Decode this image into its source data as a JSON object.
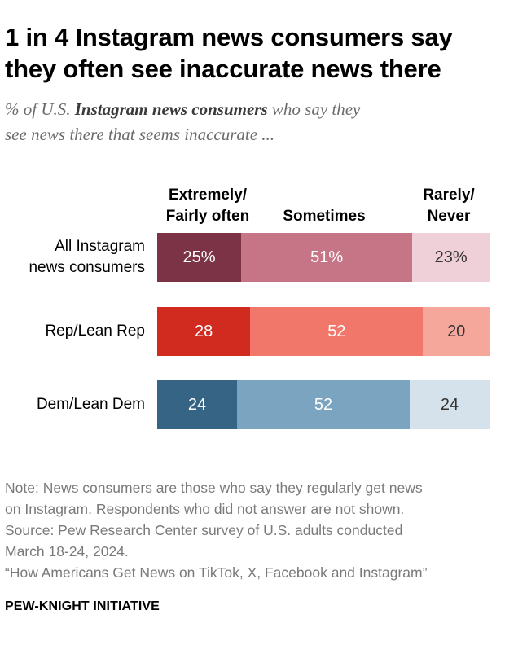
{
  "title_line1": "1 in 4 Instagram news consumers say",
  "title_line2": "they often see inaccurate news there",
  "subtitle": {
    "prefix": "% of U.S. ",
    "emphasis": "Instagram news consumers",
    "suffix_line1": " who say they",
    "line2": "see news there that seems inaccurate ..."
  },
  "chart_data": {
    "type": "bar",
    "orientation": "horizontal",
    "stacked": true,
    "scale_max": 100,
    "columns": [
      {
        "key": "often",
        "label_line1": "Extremely/",
        "label_line2": "Fairly often"
      },
      {
        "key": "sometimes",
        "label_line1": "",
        "label_line2": "Sometimes"
      },
      {
        "key": "rarely",
        "label_line1": "Rarely/",
        "label_line2": "Never"
      }
    ],
    "rows": [
      {
        "label_line1": "All Instagram",
        "label_line2": "news consumers",
        "values": [
          25,
          51,
          23
        ],
        "display": [
          "25%",
          "51%",
          "23%"
        ],
        "colors": [
          "#7d3346",
          "#c57585",
          "#efd0d8"
        ],
        "text_colors": [
          "#ffffff",
          "#ffffff",
          "#333333"
        ]
      },
      {
        "label_line1": "",
        "label_line2": "Rep/Lean Rep",
        "values": [
          28,
          52,
          20
        ],
        "display": [
          "28",
          "52",
          "20"
        ],
        "colors": [
          "#d12b1f",
          "#f0776a",
          "#f6a79b"
        ],
        "text_colors": [
          "#ffffff",
          "#ffffff",
          "#333333"
        ]
      },
      {
        "label_line1": "",
        "label_line2": "Dem/Lean Dem",
        "values": [
          24,
          52,
          24
        ],
        "display": [
          "24",
          "52",
          "24"
        ],
        "colors": [
          "#356485",
          "#7aa4c0",
          "#d5e2ec"
        ],
        "text_colors": [
          "#ffffff",
          "#ffffff",
          "#333333"
        ]
      }
    ]
  },
  "notes": [
    "Note: News consumers are those who say they regularly get news",
    "on Instagram. Respondents who did not answer are not shown.",
    "Source: Pew Research Center survey of U.S. adults conducted",
    "March 18-24, 2024.",
    "“How Americans Get News on TikTok, X, Facebook and Instagram”"
  ],
  "organization": "PEW-KNIGHT INITIATIVE"
}
